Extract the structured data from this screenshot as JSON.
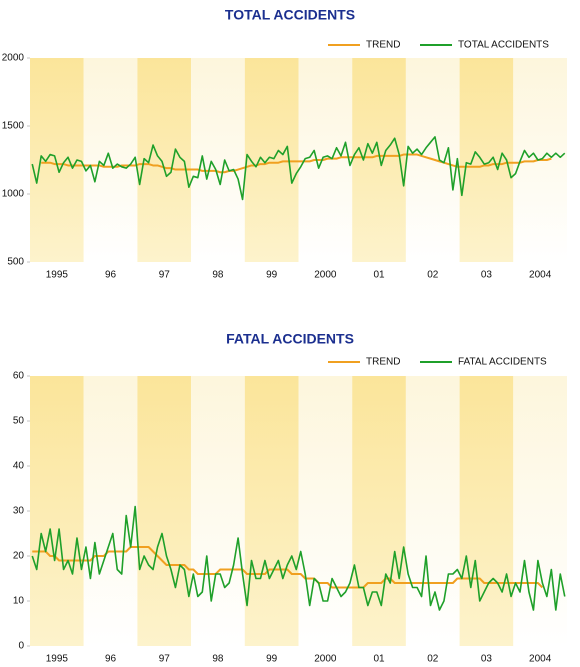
{
  "chart_data": [
    {
      "type": "line",
      "title": "TOTAL ACCIDENTS",
      "legend": "top-right",
      "categories": [
        null,
        null,
        null,
        null,
        null,
        null,
        "1995",
        null,
        null,
        null,
        null,
        null,
        null,
        null,
        null,
        null,
        null,
        null,
        "96",
        null,
        null,
        null,
        null,
        null,
        null,
        null,
        null,
        null,
        null,
        null,
        "97",
        null,
        null,
        null,
        null,
        null,
        null,
        null,
        null,
        null,
        null,
        null,
        "98",
        null,
        null,
        null,
        null,
        null,
        null,
        null,
        null,
        null,
        null,
        null,
        "99",
        null,
        null,
        null,
        null,
        null,
        null,
        null,
        null,
        null,
        null,
        null,
        "2000",
        null,
        null,
        null,
        null,
        null,
        null,
        null,
        null,
        null,
        null,
        null,
        "01",
        null,
        null,
        null,
        null,
        null,
        null,
        null,
        null,
        null,
        null,
        null,
        "02",
        null,
        null,
        null,
        null,
        null,
        null,
        null,
        null,
        null,
        null,
        null,
        "03",
        null,
        null,
        null,
        null,
        null,
        null,
        null,
        null,
        null,
        null,
        null,
        "2004",
        null,
        null,
        null,
        null,
        null
      ],
      "ylim": [
        500,
        2000
      ],
      "yticks": [
        500,
        1000,
        1500,
        2000
      ],
      "series": [
        {
          "name": "TREND",
          "color": "#f0a020",
          "values": [
            null,
            null,
            1230,
            1230,
            1230,
            1220,
            1220,
            1220,
            1210,
            1210,
            1210,
            1210,
            1210,
            1210,
            1210,
            1210,
            1200,
            1200,
            1200,
            1200,
            1210,
            1210,
            1210,
            1210,
            1220,
            1220,
            1220,
            1210,
            1210,
            1200,
            1190,
            1190,
            1180,
            1180,
            1180,
            1180,
            1180,
            1180,
            1170,
            1170,
            1170,
            1170,
            1160,
            1160,
            1170,
            1170,
            1180,
            1190,
            1200,
            1210,
            1210,
            1220,
            1220,
            1230,
            1230,
            1230,
            1240,
            1240,
            1240,
            1240,
            1240,
            1240,
            1240,
            1250,
            1250,
            1250,
            1260,
            1260,
            1260,
            1270,
            1270,
            1270,
            1270,
            1270,
            1270,
            1270,
            1270,
            1280,
            1280,
            1280,
            1280,
            1280,
            1280,
            1290,
            1290,
            1290,
            1290,
            1280,
            1270,
            1260,
            1250,
            1240,
            1230,
            1220,
            1210,
            1200,
            1200,
            1200,
            1200,
            1200,
            1200,
            1210,
            1210,
            1220,
            1220,
            1220,
            1230,
            1230,
            1230,
            1230,
            1240,
            1240,
            1240,
            1250,
            1250,
            1250,
            1260,
            null,
            null,
            null
          ]
        },
        {
          "name": "TOTAL ACCIDENTS",
          "color": "#1fa02a",
          "values": [
            1220,
            1080,
            1280,
            1240,
            1290,
            1280,
            1160,
            1230,
            1270,
            1190,
            1250,
            1240,
            1170,
            1210,
            1090,
            1240,
            1210,
            1300,
            1190,
            1220,
            1200,
            1190,
            1220,
            1270,
            1070,
            1260,
            1230,
            1360,
            1280,
            1240,
            1130,
            1160,
            1330,
            1270,
            1240,
            1050,
            1130,
            1120,
            1280,
            1110,
            1240,
            1180,
            1070,
            1250,
            1170,
            1180,
            1110,
            960,
            1290,
            1240,
            1200,
            1270,
            1230,
            1270,
            1260,
            1320,
            1290,
            1350,
            1080,
            1150,
            1200,
            1260,
            1270,
            1320,
            1190,
            1270,
            1280,
            1260,
            1340,
            1280,
            1380,
            1210,
            1290,
            1340,
            1250,
            1370,
            1300,
            1380,
            1210,
            1320,
            1360,
            1410,
            1290,
            1060,
            1350,
            1300,
            1330,
            1290,
            1340,
            1380,
            1420,
            1250,
            1230,
            1340,
            1030,
            1260,
            990,
            1230,
            1220,
            1310,
            1270,
            1220,
            1230,
            1270,
            1180,
            1300,
            1250,
            1120,
            1150,
            1240,
            1320,
            1270,
            1300,
            1250,
            1260,
            1300,
            1270,
            1300,
            1270,
            1300
          ]
        }
      ]
    },
    {
      "type": "line",
      "title": "FATAL ACCIDENTS",
      "legend": "top-right",
      "categories": [
        null,
        null,
        null,
        null,
        null,
        null,
        "1995",
        null,
        null,
        null,
        null,
        null,
        null,
        null,
        null,
        null,
        null,
        null,
        "96",
        null,
        null,
        null,
        null,
        null,
        null,
        null,
        null,
        null,
        null,
        null,
        "97",
        null,
        null,
        null,
        null,
        null,
        null,
        null,
        null,
        null,
        null,
        null,
        "98",
        null,
        null,
        null,
        null,
        null,
        null,
        null,
        null,
        null,
        null,
        null,
        "99",
        null,
        null,
        null,
        null,
        null,
        null,
        null,
        null,
        null,
        null,
        null,
        "2000",
        null,
        null,
        null,
        null,
        null,
        null,
        null,
        null,
        null,
        null,
        null,
        "01",
        null,
        null,
        null,
        null,
        null,
        null,
        null,
        null,
        null,
        null,
        null,
        "02",
        null,
        null,
        null,
        null,
        null,
        null,
        null,
        null,
        null,
        null,
        null,
        "03",
        null,
        null,
        null,
        null,
        null,
        null,
        null,
        null,
        null,
        null,
        null,
        "2004",
        null,
        null,
        null,
        null,
        null
      ],
      "ylim": [
        0,
        60
      ],
      "yticks": [
        0,
        10,
        20,
        30,
        40,
        50,
        60
      ],
      "series": [
        {
          "name": "TREND",
          "color": "#f0a020",
          "values": [
            21,
            21,
            21,
            21,
            20,
            20,
            19,
            19,
            19,
            19,
            19,
            19,
            19,
            19,
            20,
            20,
            20,
            21,
            21,
            21,
            21,
            21,
            22,
            22,
            22,
            22,
            22,
            21,
            20,
            19,
            18,
            18,
            18,
            18,
            18,
            17,
            17,
            16,
            16,
            16,
            16,
            16,
            17,
            17,
            17,
            17,
            17,
            17,
            16,
            16,
            16,
            16,
            16,
            17,
            17,
            17,
            17,
            17,
            16,
            16,
            16,
            15,
            15,
            15,
            14,
            14,
            14,
            13,
            13,
            13,
            13,
            13,
            13,
            13,
            13,
            14,
            14,
            14,
            14,
            15,
            15,
            14,
            14,
            14,
            14,
            14,
            14,
            14,
            14,
            14,
            14,
            14,
            14,
            14,
            14,
            15,
            15,
            15,
            15,
            15,
            15,
            14,
            14,
            14,
            14,
            14,
            14,
            14,
            14,
            14,
            14,
            14,
            14,
            14,
            13,
            null,
            null,
            null,
            null,
            null
          ]
        },
        {
          "name": "FATAL ACCIDENTS",
          "color": "#1fa02a",
          "values": [
            20,
            17,
            25,
            21,
            26,
            19,
            26,
            17,
            19,
            16,
            24,
            17,
            22,
            15,
            23,
            16,
            19,
            22,
            25,
            17,
            16,
            29,
            22,
            31,
            17,
            20,
            18,
            17,
            22,
            25,
            20,
            17,
            13,
            18,
            17,
            11,
            16,
            11,
            12,
            20,
            10,
            16,
            16,
            13,
            14,
            18,
            24,
            16,
            9,
            19,
            15,
            15,
            19,
            15,
            17,
            19,
            15,
            18,
            20,
            17,
            21,
            16,
            9,
            15,
            14,
            10,
            10,
            15,
            13,
            11,
            12,
            14,
            18,
            13,
            13,
            9,
            12,
            12,
            9,
            16,
            14,
            21,
            15,
            22,
            16,
            13,
            13,
            11,
            20,
            9,
            12,
            8,
            10,
            16,
            16,
            17,
            15,
            20,
            13,
            19,
            10,
            12,
            14,
            15,
            14,
            12,
            16,
            11,
            14,
            12,
            19,
            12,
            8,
            19,
            14,
            11,
            17,
            8,
            16,
            11
          ]
        }
      ]
    }
  ]
}
